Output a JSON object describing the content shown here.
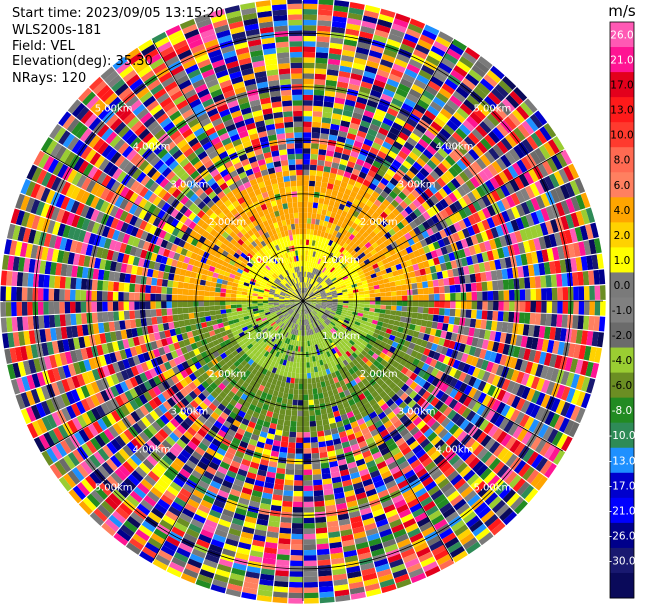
{
  "header": {
    "start_time": "Start time: 2023/09/05 13:15:20",
    "instrument": "WLS200s-181",
    "field": "Field: VEL",
    "elevation": "Elevation(deg): 35.30",
    "nrays": "NRays: 120"
  },
  "chart_data": {
    "type": "heatmap",
    "projection": "polar-ppi",
    "field": "VEL",
    "n_rays": 120,
    "elevation_deg": 35.3,
    "range_rings_km": [
      {
        "km": 1.0,
        "label": "1.00km"
      },
      {
        "km": 2.0,
        "label": "2.00km"
      },
      {
        "km": 3.0,
        "label": "3.00km"
      },
      {
        "km": 4.0,
        "label": "4.00km"
      },
      {
        "km": 5.0,
        "label": "5.00km"
      }
    ],
    "max_range_km": 5.6,
    "grid": true,
    "colorbar": {
      "unit": "m/s",
      "placement": "right",
      "ticks": [
        "26.0",
        "21.0",
        "17.0",
        "13.0",
        "10.0",
        "8.0",
        "6.0",
        "4.0",
        "2.0",
        "1.0",
        "0.0",
        "-1.0",
        "-2.0",
        "-4.0",
        "-6.0",
        "-8.0",
        "-10.0",
        "-13.0",
        "-17.0",
        "-21.0",
        "-26.0",
        "-30.0"
      ],
      "colors": [
        "#ff59b4",
        "#ff1493",
        "#e3001c",
        "#ff1a1a",
        "#ff3a2e",
        "#ff6a52",
        "#ff8060",
        "#ffa500",
        "#ffd200",
        "#ffff00",
        "#7a7a7a",
        "#808080",
        "#6b6b6b",
        "#9acd32",
        "#6b8e23",
        "#228b22",
        "#2e8b57",
        "#1e90ff",
        "#0000cd",
        "#0000ff",
        "#00008b",
        "#191970",
        "#0a0a5a"
      ]
    },
    "inner_pattern": {
      "description_free": "",
      "sectors": [
        {
          "az_start": 0,
          "az_end": 90,
          "value": 4.0,
          "r_start_km": 0.6,
          "r_end_km": 2.4
        },
        {
          "az_start": 270,
          "az_end": 360,
          "value": 4.0,
          "r_start_km": 0.6,
          "r_end_km": 2.4
        },
        {
          "az_start": 90,
          "az_end": 270,
          "value": -4.0,
          "r_start_km": 0.6,
          "r_end_km": 2.4
        }
      ]
    }
  }
}
